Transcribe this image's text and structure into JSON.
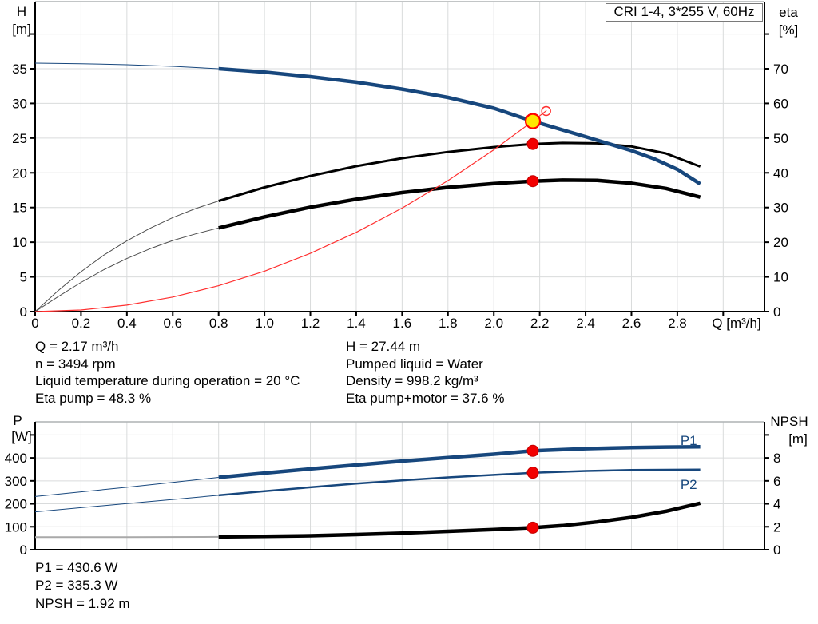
{
  "title_box": "CRI 1-4, 3*255 V, 60Hz",
  "colors": {
    "curve_blue": "#17477D",
    "curve_black": "#000000",
    "system_red": "#FF3030",
    "marker_red_fill": "#F20000",
    "marker_red_stroke": "#C40000",
    "duty_yellow": "#FFE600",
    "grid": "#D9DBDC",
    "chart_border_gray": "#AEB2B4",
    "axis_black": "#000000",
    "npsh_thin_gray": "#A9A9A9",
    "text": "#000000"
  },
  "info_top": {
    "left": [
      "Q = 2.17 m³/h",
      "n = 3494 rpm",
      "Liquid temperature during operation = 20 °C",
      "Eta pump = 48.3 %"
    ],
    "right": [
      "H = 27.44 m",
      "Pumped liquid = Water",
      "Density = 998.2 kg/m³",
      "Eta pump+motor = 37.6 %"
    ]
  },
  "info_bottom": [
    "P1 = 430.6 W",
    "P2 = 335.3 W",
    "NPSH = 1.92 m"
  ],
  "chart_data": [
    {
      "type": "line",
      "title": "CRI 1-4, 3*255 V, 60Hz",
      "x": {
        "label": "Q [m³/h]",
        "range": [
          0,
          3.18
        ],
        "tick_step": 0.2,
        "last_label": 2.8
      },
      "y_left": {
        "label_lines": [
          "H",
          "[m]"
        ],
        "range": [
          0,
          44.67
        ],
        "tick_step": 5,
        "last_label": 35
      },
      "y_right": {
        "label_lines": [
          "eta",
          "[%]"
        ],
        "range": [
          0,
          89.34
        ],
        "tick_step": 10,
        "last_label": 70
      },
      "grid": true,
      "series": [
        {
          "name": "eta-pump-curve",
          "axis": "right",
          "color": "#000000",
          "width": 3,
          "thin_until": 0.8,
          "thin_width": 1,
          "thin_color": "#4D4D4D",
          "points": [
            [
              0,
              0
            ],
            [
              0.1,
              6
            ],
            [
              0.2,
              11.5
            ],
            [
              0.3,
              16.3
            ],
            [
              0.4,
              20.4
            ],
            [
              0.5,
              24
            ],
            [
              0.6,
              27.1
            ],
            [
              0.7,
              29.7
            ],
            [
              0.8,
              31.9
            ],
            [
              1.0,
              35.8
            ],
            [
              1.2,
              39.1
            ],
            [
              1.4,
              41.9
            ],
            [
              1.6,
              44.2
            ],
            [
              1.8,
              46
            ],
            [
              2.0,
              47.4
            ],
            [
              2.17,
              48.3
            ],
            [
              2.3,
              48.6
            ],
            [
              2.45,
              48.5
            ],
            [
              2.6,
              47.6
            ],
            [
              2.75,
              45.6
            ],
            [
              2.9,
              41.8
            ]
          ]
        },
        {
          "name": "eta-pump-motor-curve",
          "axis": "right",
          "color": "#000000",
          "width": 4.5,
          "thin_until": 0.8,
          "thin_width": 1,
          "thin_color": "#4D4D4D",
          "points": [
            [
              0,
              0
            ],
            [
              0.1,
              4.3
            ],
            [
              0.2,
              8.4
            ],
            [
              0.3,
              12.1
            ],
            [
              0.4,
              15.3
            ],
            [
              0.5,
              18.1
            ],
            [
              0.6,
              20.5
            ],
            [
              0.7,
              22.4
            ],
            [
              0.8,
              24.1
            ],
            [
              1.0,
              27.3
            ],
            [
              1.2,
              30.1
            ],
            [
              1.4,
              32.4
            ],
            [
              1.6,
              34.3
            ],
            [
              1.8,
              35.8
            ],
            [
              2.0,
              36.9
            ],
            [
              2.17,
              37.6
            ],
            [
              2.3,
              37.9
            ],
            [
              2.45,
              37.8
            ],
            [
              2.6,
              37.0
            ],
            [
              2.75,
              35.5
            ],
            [
              2.9,
              33.0
            ]
          ]
        },
        {
          "name": "hq-curve",
          "axis": "left",
          "color": "#17477D",
          "width": 4.5,
          "thin_until": 0.8,
          "thin_width": 1,
          "thin_color": "#17477D",
          "points": [
            [
              0,
              35.8
            ],
            [
              0.2,
              35.72
            ],
            [
              0.4,
              35.58
            ],
            [
              0.6,
              35.35
            ],
            [
              0.8,
              35.0
            ],
            [
              1.0,
              34.5
            ],
            [
              1.2,
              33.85
            ],
            [
              1.4,
              33.05
            ],
            [
              1.6,
              32.05
            ],
            [
              1.8,
              30.85
            ],
            [
              2.0,
              29.3
            ],
            [
              2.17,
              27.44
            ],
            [
              2.4,
              25.2
            ],
            [
              2.6,
              23.2
            ],
            [
              2.7,
              22.0
            ],
            [
              2.8,
              20.5
            ],
            [
              2.9,
              18.4
            ]
          ]
        },
        {
          "name": "system-curve",
          "axis": "left",
          "color": "#FF3030",
          "width": 1.2,
          "points": [
            [
              0,
              0
            ],
            [
              0.2,
              0.23
            ],
            [
              0.4,
              0.93
            ],
            [
              0.6,
              2.1
            ],
            [
              0.8,
              3.73
            ],
            [
              1.0,
              5.83
            ],
            [
              1.2,
              8.39
            ],
            [
              1.4,
              11.42
            ],
            [
              1.6,
              14.92
            ],
            [
              1.8,
              18.88
            ],
            [
              2.0,
              23.31
            ],
            [
              2.17,
              27.44
            ],
            [
              2.23,
              28.98
            ]
          ]
        }
      ],
      "markers": [
        {
          "name": "system-curve-open-point",
          "axis": "left",
          "x": 2.228,
          "y": 28.9,
          "r": 5.5,
          "fill": "none",
          "stroke": "#FF3030",
          "stroke_width": 1.5,
          "interactable": false
        },
        {
          "name": "duty-point",
          "axis": "left",
          "x": 2.17,
          "y": 27.44,
          "r": 9,
          "fill": "#FFE600",
          "stroke": "#FF0000",
          "stroke_width": 2.2,
          "interactable": true
        },
        {
          "name": "eta-pump-point",
          "axis": "right",
          "x": 2.17,
          "y": 48.3,
          "r": 7,
          "fill": "#F20000",
          "stroke": "#C40000",
          "stroke_width": 1,
          "interactable": false
        },
        {
          "name": "eta-pump-motor-point",
          "axis": "right",
          "x": 2.17,
          "y": 37.6,
          "r": 7,
          "fill": "#F20000",
          "stroke": "#C40000",
          "stroke_width": 1,
          "interactable": false
        }
      ],
      "annotations": []
    },
    {
      "type": "line",
      "x": {
        "label": "",
        "range": [
          0,
          3.18
        ],
        "tick_step": 0.2,
        "last_label": null
      },
      "y_left": {
        "label_lines": [
          "P",
          "[W]"
        ],
        "range": [
          0,
          557
        ],
        "tick_step": 100,
        "last_label": 400
      },
      "y_right": {
        "label_lines": [
          "NPSH",
          "[m]"
        ],
        "range": [
          0,
          11.14
        ],
        "tick_step": 2,
        "last_label": 8
      },
      "grid": true,
      "series": [
        {
          "name": "p1-curve",
          "axis": "left",
          "color": "#17477D",
          "width": 4.5,
          "thin_until": 0.8,
          "thin_width": 1,
          "thin_color": "#17477D",
          "points": [
            [
              0,
              232
            ],
            [
              0.2,
              252
            ],
            [
              0.4,
              272
            ],
            [
              0.6,
              293
            ],
            [
              0.8,
              315
            ],
            [
              1.0,
              334
            ],
            [
              1.2,
              352
            ],
            [
              1.4,
              369
            ],
            [
              1.6,
              386
            ],
            [
              1.8,
              401
            ],
            [
              2.0,
              416
            ],
            [
              2.17,
              430.6
            ],
            [
              2.4,
              440
            ],
            [
              2.6,
              445
            ],
            [
              2.75,
              447
            ],
            [
              2.9,
              448
            ]
          ]
        },
        {
          "name": "p2-curve",
          "axis": "left",
          "color": "#17477D",
          "width": 2.5,
          "thin_until": 0.8,
          "thin_width": 1,
          "thin_color": "#17477D",
          "points": [
            [
              0,
              165
            ],
            [
              0.2,
              183
            ],
            [
              0.4,
              201
            ],
            [
              0.6,
              219
            ],
            [
              0.8,
              237
            ],
            [
              1.0,
              255
            ],
            [
              1.2,
              272
            ],
            [
              1.4,
              288
            ],
            [
              1.6,
              302
            ],
            [
              1.8,
              315
            ],
            [
              2.0,
              326
            ],
            [
              2.17,
              335.3
            ],
            [
              2.4,
              343
            ],
            [
              2.6,
              347
            ],
            [
              2.9,
              349
            ]
          ]
        },
        {
          "name": "npsh-curve",
          "axis": "right",
          "color": "#000000",
          "width": 4.5,
          "thin_until": 0.8,
          "thin_width": 2,
          "thin_color": "#A9A9A9",
          "points": [
            [
              0,
              1.1
            ],
            [
              0.4,
              1.1
            ],
            [
              0.8,
              1.12
            ],
            [
              1.0,
              1.16
            ],
            [
              1.2,
              1.22
            ],
            [
              1.4,
              1.32
            ],
            [
              1.6,
              1.45
            ],
            [
              1.8,
              1.6
            ],
            [
              2.0,
              1.76
            ],
            [
              2.17,
              1.92
            ],
            [
              2.3,
              2.1
            ],
            [
              2.45,
              2.42
            ],
            [
              2.6,
              2.82
            ],
            [
              2.75,
              3.35
            ],
            [
              2.9,
              4.05
            ]
          ]
        }
      ],
      "markers": [
        {
          "name": "p1-point",
          "axis": "left",
          "x": 2.17,
          "y": 430.6,
          "r": 7,
          "fill": "#F20000",
          "stroke": "#C40000",
          "stroke_width": 1,
          "interactable": false
        },
        {
          "name": "p2-point",
          "axis": "left",
          "x": 2.17,
          "y": 335.3,
          "r": 7,
          "fill": "#F20000",
          "stroke": "#C40000",
          "stroke_width": 1,
          "interactable": false
        },
        {
          "name": "npsh-point",
          "axis": "right",
          "x": 2.17,
          "y": 1.92,
          "r": 7,
          "fill": "#F20000",
          "stroke": "#C40000",
          "stroke_width": 1,
          "interactable": false
        }
      ],
      "annotations": [
        {
          "name": "p1-label",
          "text": "P1",
          "axis": "left",
          "x": 2.85,
          "y": 456,
          "color": "#17477D"
        },
        {
          "name": "p2-label",
          "text": "P2",
          "axis": "left",
          "x": 2.85,
          "y": 265,
          "color": "#17477D"
        }
      ]
    }
  ]
}
